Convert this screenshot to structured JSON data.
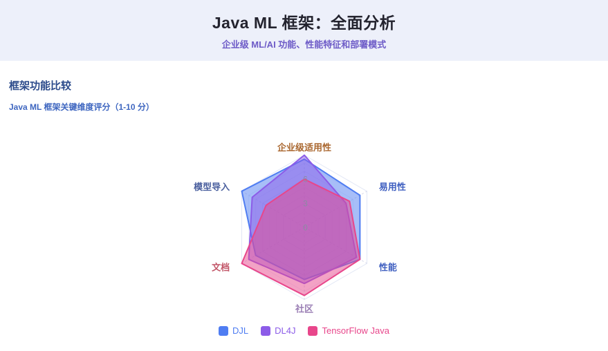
{
  "header": {
    "title": "Java ML 框架：全面分析",
    "subtitle": "企业级 ML/AI 功能、性能特征和部署模式"
  },
  "section": {
    "title": "框架功能比较",
    "caption": "Java ML 框架关键维度评分（1-10 分）"
  },
  "chart_data": {
    "type": "radar",
    "title": "框架功能比较",
    "scale_note": "1-10 分",
    "axis_range": [
      0,
      9
    ],
    "tick_labels": [
      0,
      3,
      6
    ],
    "grid": "hexagonal, one faint ring per unit, dashed radial axis lines",
    "legend_position": "bottom",
    "indicators": [
      {
        "name": "企业级适用性",
        "color": "#a9662e",
        "position": "top"
      },
      {
        "name": "易用性",
        "color": "#3f5fc0",
        "position": "upper-right"
      },
      {
        "name": "性能",
        "color": "#3f5fc0",
        "position": "lower-right"
      },
      {
        "name": "社区",
        "color": "#9b7fb5",
        "position": "bottom"
      },
      {
        "name": "文档",
        "color": "#c25668",
        "position": "lower-left"
      },
      {
        "name": "模型导入",
        "color": "#4a5f9e",
        "position": "upper-left"
      }
    ],
    "series": [
      {
        "name": "DJL",
        "color": "#4f7df2",
        "values": [
          8.5,
          8,
          8,
          6.5,
          7,
          9
        ]
      },
      {
        "name": "DL4J",
        "color": "#8c5ce8",
        "values": [
          9,
          6,
          7.5,
          7,
          8,
          7.5
        ]
      },
      {
        "name": "TensorFlow Java",
        "color": "#e8468b",
        "values": [
          6,
          6.5,
          8,
          8.5,
          9,
          5.5
        ]
      }
    ],
    "colors": {
      "header_background": "#edf0fa",
      "page_background": "#ffffff",
      "title_text": "#23232e",
      "subtitle_text": "#6d5bc7",
      "section_title_text": "#2b4a8b",
      "caption_text": "#3e66c0",
      "grid_ring": "#e2e7f5",
      "axis_line": "#d4d6e8",
      "tick_label": "#8b8ba3"
    }
  }
}
